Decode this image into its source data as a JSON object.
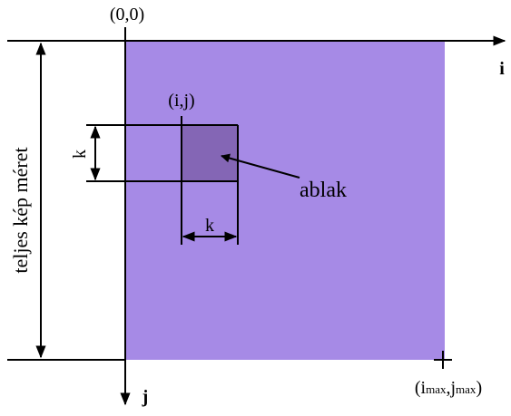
{
  "origin_label": "(0,0)",
  "axis_i_label": "i",
  "axis_j_label": "j",
  "window_corner_label": "(i,j)",
  "window_height_label": "k",
  "window_width_label": "k",
  "window_label": "ablak",
  "full_size_label": "teljes kép méret",
  "max_corner_label": {
    "open": "(i",
    "sub_i": "max",
    "comma": ",j",
    "sub_j": "max",
    "close": ")"
  }
}
